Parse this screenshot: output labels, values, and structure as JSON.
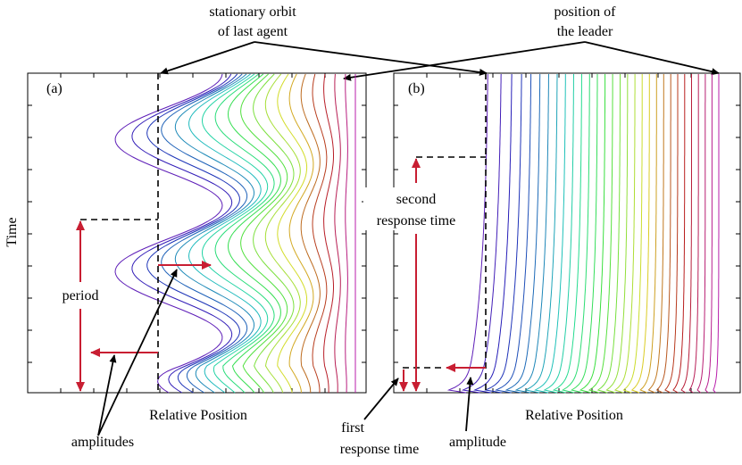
{
  "colors": {
    "accent_red": "#c81e32",
    "spectrum_start": "#5a3fa0",
    "spectrum_end": "#c0143c"
  },
  "icons": [
    "arrow-head-icon"
  ],
  "annotations": {
    "stationary_orbit": {
      "line1": "stationary orbit",
      "line2": "of last agent"
    },
    "position_leader": {
      "line1": "position of",
      "line2": "the leader"
    }
  },
  "panel_a": {
    "tag": "(a)",
    "xlabel": "Relative Position",
    "ylabel": "Time",
    "period_label": "period",
    "amplitudes_label": "amplitudes",
    "agents": 20
  },
  "panel_b": {
    "tag": "(b)",
    "xlabel": "Relative Position",
    "second_response": {
      "line1": "second",
      "line2": "response time"
    },
    "first_response": {
      "line1": "first",
      "line2": "response time"
    },
    "amplitude_label": "amplitude",
    "agents": 30
  }
}
